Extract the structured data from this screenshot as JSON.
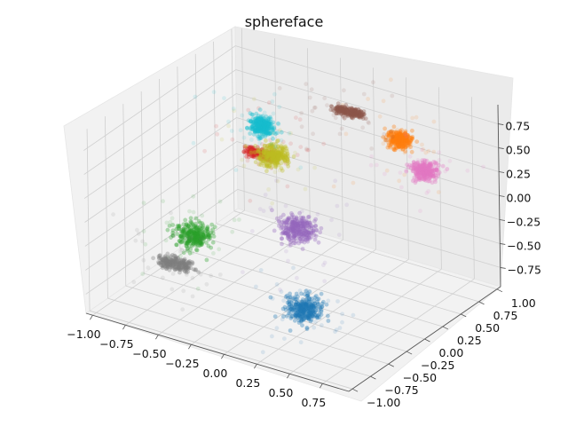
{
  "chart_data": {
    "type": "scatter",
    "projection": "3d",
    "title": "sphereface",
    "xlabel": "",
    "ylabel": "",
    "zlabel": "",
    "xlim": [
      -1.05,
      0.95
    ],
    "ylim": [
      -1.05,
      1.05
    ],
    "zlim": [
      -0.95,
      0.95
    ],
    "grid": true,
    "legend": "none",
    "x_ticks": [
      "−1.00",
      "−0.75",
      "−0.50",
      "−0.25",
      "0.00",
      "0.25",
      "0.50",
      "0.75"
    ],
    "y_ticks": [
      "−1.00",
      "−0.75",
      "−0.50",
      "−0.25",
      "0.00",
      "0.25",
      "0.50",
      "0.75",
      "1.00"
    ],
    "z_ticks": [
      "−0.75",
      "−0.50",
      "−0.25",
      "0.00",
      "0.25",
      "0.50",
      "0.75"
    ],
    "x_tick_values": [
      -1.0,
      -0.75,
      -0.5,
      -0.25,
      0.0,
      0.25,
      0.5,
      0.75
    ],
    "y_tick_values": [
      -1.0,
      -0.75,
      -0.5,
      -0.25,
      0.0,
      0.25,
      0.5,
      0.75,
      1.0
    ],
    "z_tick_values": [
      -0.75,
      -0.5,
      -0.25,
      0.0,
      0.25,
      0.5,
      0.75
    ],
    "clusters": [
      {
        "color": "#1f77b4",
        "center": [
          0.45,
          -0.75,
          -0.45
        ],
        "spread": 0.06,
        "shape": "blob"
      },
      {
        "color": "#ff7f0e",
        "center": [
          0.25,
          0.95,
          0.35
        ],
        "spread": 0.04,
        "shape": "blob"
      },
      {
        "color": "#2ca02c",
        "center": [
          -0.55,
          -0.45,
          -0.25
        ],
        "spread": 0.055,
        "shape": "blob"
      },
      {
        "color": "#d62728",
        "center": [
          -0.65,
          0.65,
          0.0
        ],
        "spread": 0.02,
        "shape": "arc"
      },
      {
        "color": "#9467bd",
        "center": [
          0.1,
          -0.2,
          -0.05
        ],
        "spread": 0.06,
        "shape": "blob"
      },
      {
        "color": "#8c564b",
        "center": [
          -0.05,
          0.8,
          0.6
        ],
        "spread": 0.02,
        "shape": "arc"
      },
      {
        "color": "#e377c2",
        "center": [
          0.55,
          0.75,
          0.25
        ],
        "spread": 0.04,
        "shape": "blob"
      },
      {
        "color": "#7f7f7f",
        "center": [
          -0.7,
          -0.45,
          -0.6
        ],
        "spread": 0.03,
        "shape": "arc"
      },
      {
        "color": "#bcbd22",
        "center": [
          -0.3,
          0.2,
          0.35
        ],
        "spread": 0.05,
        "shape": "blob"
      },
      {
        "color": "#17becf",
        "center": [
          -0.55,
          0.5,
          0.4
        ],
        "spread": 0.04,
        "shape": "blob"
      }
    ]
  }
}
